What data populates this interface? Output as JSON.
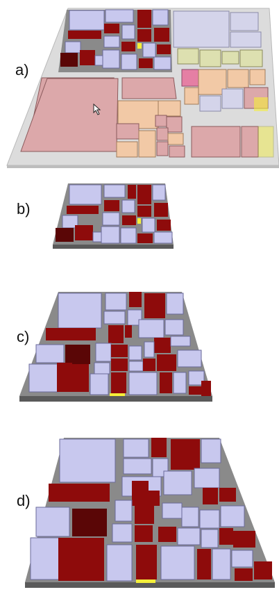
{
  "figure": {
    "panels": [
      {
        "label": "a)"
      },
      {
        "label": "b)"
      },
      {
        "label": "c)"
      },
      {
        "label": "d)"
      }
    ]
  },
  "colors": {
    "background": "#ffffff",
    "base_platform": "#d9d9d9",
    "dark_base": "#6f6f6f",
    "lavender_box": "#c8c8ee",
    "dark_red_box": "#8e0b0b",
    "maroon_box": "#5a0606",
    "pink_box": "#d9a5a7",
    "peach_box": "#f2c9a6",
    "olive_box": "#dde0b0",
    "yellow_highlight": "#f5ef3a"
  },
  "icons": {
    "cursor": "mouse-pointer-icon"
  }
}
